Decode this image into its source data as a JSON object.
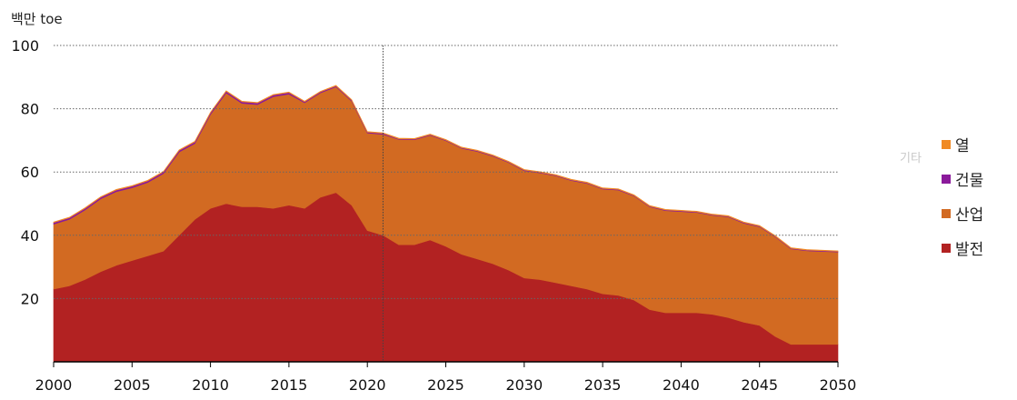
{
  "unit_label": "백만 toe",
  "legend_title": "기타",
  "colors": {
    "power": "#b22222",
    "industry": "#d26a22",
    "buildings": "#8b1a9b",
    "heat": "#f08a24",
    "grid": "#666666",
    "axis": "#000000"
  },
  "chart_data": {
    "type": "area",
    "stacked": true,
    "x": [
      2000,
      2001,
      2002,
      2003,
      2004,
      2005,
      2006,
      2007,
      2008,
      2009,
      2010,
      2011,
      2012,
      2013,
      2014,
      2015,
      2016,
      2017,
      2018,
      2019,
      2020,
      2021,
      2022,
      2023,
      2024,
      2025,
      2026,
      2027,
      2028,
      2029,
      2030,
      2031,
      2032,
      2033,
      2034,
      2035,
      2036,
      2037,
      2038,
      2039,
      2040,
      2041,
      2042,
      2043,
      2044,
      2045,
      2046,
      2047,
      2048,
      2049,
      2050
    ],
    "series": [
      {
        "name": "발전",
        "color": "#b22222",
        "values": [
          23,
          24,
          26,
          28.5,
          30.5,
          32,
          33.5,
          35,
          40,
          45,
          48.5,
          50,
          49,
          49,
          48.5,
          49.5,
          48.5,
          52,
          53.5,
          49.5,
          41.5,
          40,
          37,
          37,
          38.5,
          36.5,
          34,
          32.5,
          31,
          29,
          26.5,
          26,
          25,
          24,
          23,
          21.5,
          21,
          19.5,
          16.5,
          15.5,
          15.5,
          15.5,
          15,
          14,
          12.5,
          11.5,
          8,
          5.5,
          5.5,
          5.5,
          5.5
        ]
      },
      {
        "name": "산업",
        "color": "#d26a22",
        "values": [
          20.5,
          21,
          22,
          23,
          23.3,
          23,
          23.2,
          24.5,
          26.3,
          24,
          29.7,
          35,
          32.7,
          32.3,
          35.3,
          35.1,
          33.4,
          33,
          33.4,
          32.9,
          30.8,
          31.9,
          33.3,
          33.2,
          33.1,
          33.4,
          33.5,
          34,
          34,
          34,
          33.9,
          33.7,
          33.8,
          33.3,
          33.4,
          33.1,
          33.3,
          32.9,
          32.5,
          32.3,
          32,
          31.7,
          31.3,
          31.8,
          31.3,
          31.2,
          31.5,
          30.2,
          29.6,
          29.4,
          29.2
        ]
      },
      {
        "name": "건물",
        "color": "#8b1a9b",
        "values": [
          0.5,
          0.5,
          0.5,
          0.5,
          0.5,
          0.5,
          0.5,
          0.5,
          0.5,
          0.5,
          0.5,
          0.5,
          0.5,
          0.5,
          0.5,
          0.5,
          0.3,
          0.3,
          0.3,
          0.3,
          0.3,
          0.3,
          0.2,
          0.2,
          0.2,
          0.2,
          0.2,
          0.2,
          0.2,
          0.2,
          0.2,
          0.2,
          0.2,
          0.2,
          0.2,
          0.2,
          0.2,
          0.2,
          0.2,
          0.2,
          0.2,
          0.2,
          0.2,
          0.2,
          0.2,
          0.2,
          0.2,
          0.2,
          0.2,
          0.2,
          0.2
        ]
      },
      {
        "name": "열",
        "color": "#f08a24",
        "values": [
          0.2,
          0.2,
          0.2,
          0.2,
          0.2,
          0.2,
          0.2,
          0.2,
          0.2,
          0.2,
          0.2,
          0.2,
          0.2,
          0.2,
          0.2,
          0.2,
          0.2,
          0.2,
          0.2,
          0.2,
          0.2,
          0.2,
          0.2,
          0.2,
          0.2,
          0.2,
          0.2,
          0.2,
          0.2,
          0.2,
          0.2,
          0.2,
          0.2,
          0.2,
          0.2,
          0.2,
          0.2,
          0.2,
          0.2,
          0.2,
          0.2,
          0.2,
          0.2,
          0.2,
          0.2,
          0.2,
          0.2,
          0.2,
          0.2,
          0.2,
          0.2
        ]
      }
    ],
    "legend_order": [
      "열",
      "건물",
      "산업",
      "발전"
    ],
    "xlim": [
      2000,
      2050
    ],
    "ylim": [
      0,
      100
    ],
    "x_ticks": [
      "2000",
      "2005",
      "2010",
      "2015",
      "2020",
      "2025",
      "2030",
      "2035",
      "2040",
      "2045",
      "2050"
    ],
    "y_ticks": [
      "20",
      "40",
      "60",
      "80",
      "100"
    ],
    "reference_line_x": 2021,
    "grid": "horizontal dotted",
    "legend_position": "right"
  }
}
